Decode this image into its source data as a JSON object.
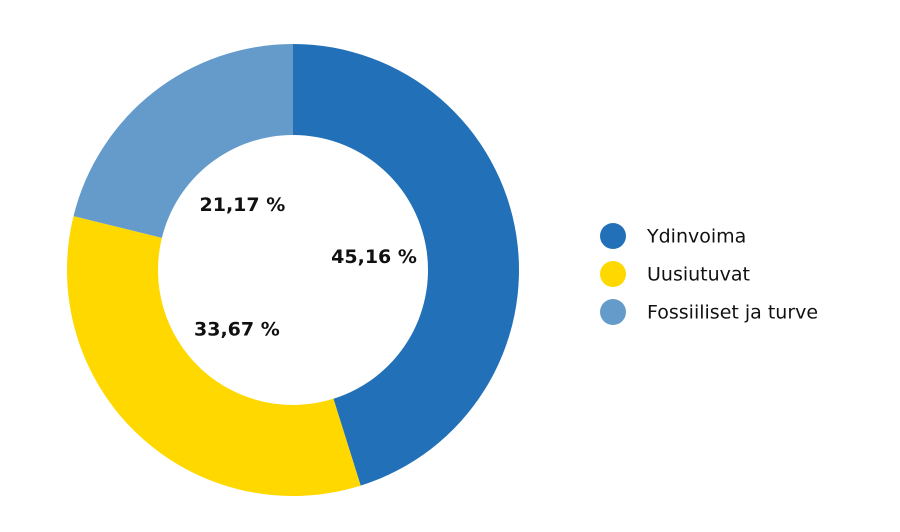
{
  "chart_data": {
    "type": "donut",
    "categories": [
      "Ydinvoima",
      "Uusiutuvat",
      "Fossiiliset ja turve"
    ],
    "values": [
      45.16,
      33.67,
      21.17
    ],
    "value_labels": [
      "45,16 %",
      "33,67 %",
      "21,17 %"
    ],
    "colors": [
      "#2271b8",
      "#ffd800",
      "#659bcb"
    ],
    "legend": "right"
  }
}
